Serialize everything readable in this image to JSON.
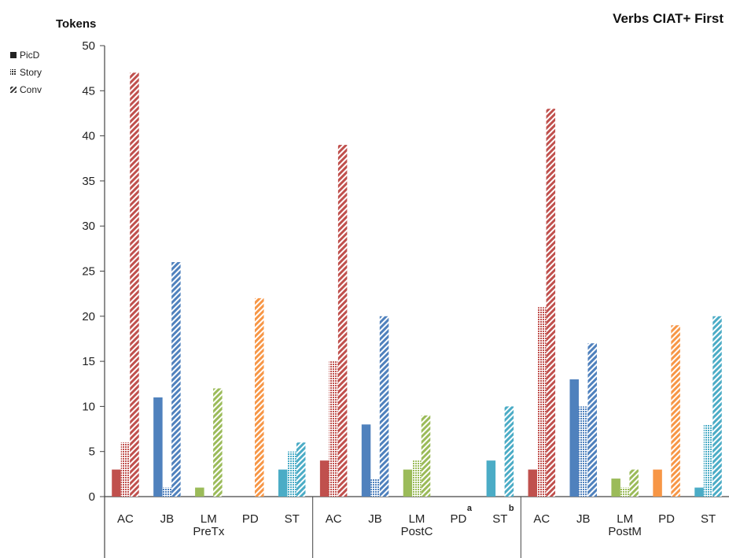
{
  "chart_data": {
    "type": "bar",
    "title": "Verbs CIAT+ First",
    "ylabel": "Tokens",
    "xlabel": "",
    "ylim": [
      0,
      50
    ],
    "yticks": [
      0,
      5,
      10,
      15,
      20,
      25,
      30,
      35,
      40,
      45,
      50
    ],
    "grid": false,
    "legend": {
      "placement": "left",
      "entries": [
        {
          "label": "PicD",
          "marker": "solid"
        },
        {
          "label": "Story",
          "marker": "dotted"
        },
        {
          "label": "Conv",
          "marker": "striped"
        }
      ]
    },
    "groups": [
      "PreTx",
      "PostC",
      "PostM"
    ],
    "participants": [
      "AC",
      "JB",
      "LM",
      "PD",
      "ST"
    ],
    "participant_colors": {
      "AC": "#c0504d",
      "JB": "#4f81bd",
      "LM": "#9bbb59",
      "PD": "#f79646",
      "ST": "#4bacc6"
    },
    "annotations": [
      {
        "group": "PostC",
        "participant": "PD",
        "text": "a"
      },
      {
        "group": "PostC",
        "participant": "ST",
        "text": "b"
      }
    ],
    "series": [
      {
        "name": "PicD",
        "values": {
          "PreTx": [
            3,
            11,
            1,
            0,
            3
          ],
          "PostC": [
            4,
            8,
            3,
            0,
            4
          ],
          "PostM": [
            3,
            13,
            2,
            3,
            1
          ]
        }
      },
      {
        "name": "Story",
        "values": {
          "PreTx": [
            6,
            1,
            0,
            0,
            5
          ],
          "PostC": [
            15,
            2,
            4,
            0,
            0
          ],
          "PostM": [
            21,
            10,
            1,
            0,
            8
          ]
        }
      },
      {
        "name": "Conv",
        "values": {
          "PreTx": [
            47,
            26,
            12,
            22,
            6
          ],
          "PostC": [
            39,
            20,
            9,
            0,
            10
          ],
          "PostM": [
            43,
            17,
            3,
            19,
            20
          ]
        }
      }
    ]
  }
}
